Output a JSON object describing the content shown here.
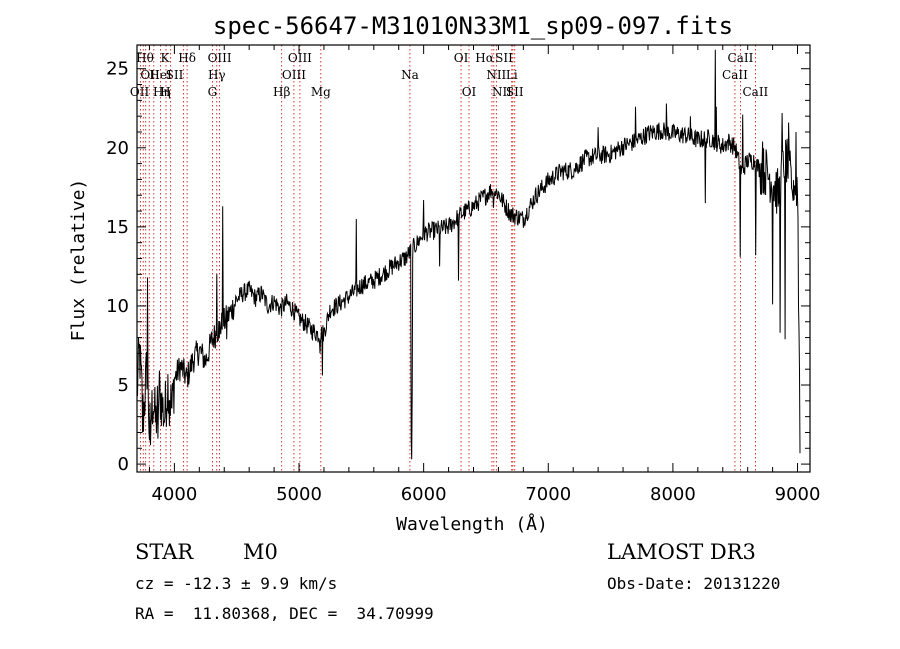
{
  "chart_data": {
    "type": "line",
    "title": "spec-56647-M31010N33M1_sp09-097.fits",
    "xlabel": "Wavelength (Å)",
    "ylabel": "Flux (relative)",
    "xlim": [
      3700,
      9100
    ],
    "ylim": [
      -0.5,
      26.5
    ],
    "xticks": [
      4000,
      5000,
      6000,
      7000,
      8000,
      9000
    ],
    "yticks": [
      0,
      5,
      10,
      15,
      20,
      25
    ],
    "anchors": [
      [
        3700,
        4.5
      ],
      [
        3720,
        7.2
      ],
      [
        3750,
        3.0
      ],
      [
        3780,
        6.2
      ],
      [
        3800,
        2.0
      ],
      [
        3830,
        4.2
      ],
      [
        3850,
        2.6
      ],
      [
        3880,
        4.6
      ],
      [
        3920,
        3.0
      ],
      [
        3950,
        5.2
      ],
      [
        3980,
        3.4
      ],
      [
        4000,
        5.4
      ],
      [
        4050,
        6.2
      ],
      [
        4100,
        5.4
      ],
      [
        4150,
        6.6
      ],
      [
        4200,
        7.2
      ],
      [
        4250,
        6.5
      ],
      [
        4300,
        7.8
      ],
      [
        4350,
        8.5
      ],
      [
        4400,
        9.0
      ],
      [
        4450,
        9.6
      ],
      [
        4500,
        10.4
      ],
      [
        4550,
        10.8
      ],
      [
        4600,
        11.0
      ],
      [
        4650,
        10.5
      ],
      [
        4700,
        10.8
      ],
      [
        4750,
        10.0
      ],
      [
        4800,
        10.3
      ],
      [
        4850,
        9.8
      ],
      [
        4900,
        10.2
      ],
      [
        4950,
        9.8
      ],
      [
        5000,
        9.2
      ],
      [
        5050,
        8.9
      ],
      [
        5100,
        8.5
      ],
      [
        5150,
        8.2
      ],
      [
        5200,
        8.3
      ],
      [
        5250,
        9.8
      ],
      [
        5300,
        10.0
      ],
      [
        5400,
        10.6
      ],
      [
        5500,
        11.3
      ],
      [
        5600,
        11.6
      ],
      [
        5700,
        12.2
      ],
      [
        5800,
        12.8
      ],
      [
        5850,
        13.0
      ],
      [
        5950,
        14.0
      ],
      [
        6000,
        14.6
      ],
      [
        6100,
        14.8
      ],
      [
        6200,
        15.0
      ],
      [
        6300,
        15.8
      ],
      [
        6400,
        16.3
      ],
      [
        6500,
        17.0
      ],
      [
        6550,
        17.4
      ],
      [
        6600,
        17.1
      ],
      [
        6650,
        16.4
      ],
      [
        6700,
        15.8
      ],
      [
        6800,
        15.5
      ],
      [
        6900,
        17.0
      ],
      [
        7000,
        17.9
      ],
      [
        7100,
        18.5
      ],
      [
        7200,
        18.6
      ],
      [
        7300,
        19.3
      ],
      [
        7400,
        19.5
      ],
      [
        7500,
        19.6
      ],
      [
        7600,
        20.1
      ],
      [
        7700,
        20.4
      ],
      [
        7800,
        20.9
      ],
      [
        7900,
        21.1
      ],
      [
        8000,
        20.9
      ],
      [
        8100,
        20.8
      ],
      [
        8200,
        20.5
      ],
      [
        8300,
        20.6
      ],
      [
        8400,
        20.1
      ],
      [
        8450,
        20.4
      ],
      [
        8500,
        20.0
      ],
      [
        8550,
        18.5
      ],
      [
        8600,
        19.2
      ],
      [
        8650,
        19.2
      ],
      [
        8700,
        18.6
      ],
      [
        8750,
        18.5
      ],
      [
        8800,
        17.8
      ],
      [
        8850,
        17.0
      ],
      [
        8900,
        19.5
      ],
      [
        8950,
        18.0
      ],
      [
        9000,
        17.5
      ],
      [
        9010,
        12.0
      ],
      [
        9020,
        1.0
      ]
    ],
    "spikes": [
      [
        3720,
        7.6
      ],
      [
        3745,
        2.0
      ],
      [
        3785,
        11.8
      ],
      [
        3810,
        1.2
      ],
      [
        3870,
        1.6
      ],
      [
        3960,
        2.4
      ],
      [
        4340,
        12.0
      ],
      [
        4360,
        8.0
      ],
      [
        4390,
        16.3
      ],
      [
        4420,
        7.9
      ],
      [
        5170,
        7.0
      ],
      [
        5190,
        5.6
      ],
      [
        5460,
        15.5
      ],
      [
        5900,
        1.5
      ],
      [
        5905,
        0.3
      ],
      [
        5910,
        4.5
      ],
      [
        6000,
        16.7
      ],
      [
        6130,
        12.5
      ],
      [
        6280,
        11.6
      ],
      [
        6560,
        16.2
      ],
      [
        6870,
        16.5
      ],
      [
        7400,
        21.3
      ],
      [
        7700,
        22.6
      ],
      [
        7950,
        22.8
      ],
      [
        8140,
        22.0
      ],
      [
        8260,
        16.5
      ],
      [
        8340,
        26.2
      ],
      [
        8345,
        20.0
      ],
      [
        8350,
        22.6
      ],
      [
        8540,
        13.1
      ],
      [
        8560,
        22.1
      ],
      [
        8665,
        13.2
      ],
      [
        8720,
        20.4
      ],
      [
        8800,
        10.1
      ],
      [
        8860,
        8.3
      ],
      [
        8875,
        22.2
      ],
      [
        8900,
        7.9
      ],
      [
        8930,
        21.6
      ],
      [
        8960,
        17.0
      ],
      [
        8990,
        21.0
      ],
      [
        9010,
        10.0
      ]
    ],
    "series": [
      {
        "values_note": "",
        "color": "#000000"
      }
    ],
    "lines": [
      {
        "wl": 3835,
        "label": "Hθ",
        "row": 0,
        "anchor": "end"
      },
      {
        "wl": 3889,
        "label": "K",
        "row": 0,
        "anchor": "start"
      },
      {
        "wl": 4102,
        "label": "Hδ",
        "row": 0,
        "anchor": "middle"
      },
      {
        "wl": 4363,
        "label": "OIII",
        "row": 0,
        "anchor": "middle"
      },
      {
        "wl": 5007,
        "label": "OIII",
        "row": 0,
        "anchor": "middle"
      },
      {
        "wl": 6300,
        "label": "OI",
        "row": 0,
        "anchor": "middle"
      },
      {
        "wl": 6563,
        "label": "Hα",
        "row": 0,
        "anchor": "end"
      },
      {
        "wl": 6716,
        "label": "SII",
        "row": 0,
        "anchor": "end"
      },
      {
        "wl": 8542,
        "label": "CaII",
        "row": 0,
        "anchor": "middle"
      },
      {
        "wl": 3727,
        "label": "OII",
        "row": 1,
        "anchor": "start"
      },
      {
        "wl": 3889,
        "label": "HeI",
        "row": 1,
        "anchor": "middle"
      },
      {
        "wl": 4072,
        "label": "SII",
        "row": 1,
        "anchor": "end"
      },
      {
        "wl": 4340,
        "label": "Hγ",
        "row": 1,
        "anchor": "middle"
      },
      {
        "wl": 4959,
        "label": "OIII",
        "row": 1,
        "anchor": "middle"
      },
      {
        "wl": 5890,
        "label": "Na",
        "row": 1,
        "anchor": "middle"
      },
      {
        "wl": 6583,
        "label": "NII",
        "row": 1,
        "anchor": "middle"
      },
      {
        "wl": 6707,
        "label": "Li",
        "row": 1,
        "anchor": "middle"
      },
      {
        "wl": 8498,
        "label": "CaII",
        "row": 1,
        "anchor": "middle"
      },
      {
        "wl": 3798,
        "label": "OII",
        "row": 2,
        "anchor": "end"
      },
      {
        "wl": 3970,
        "label": "H",
        "row": 2,
        "anchor": "end"
      },
      {
        "wl": 3970,
        "label": "Hη",
        "row": 2,
        "anchor": "end"
      },
      {
        "wl": 4305,
        "label": "G",
        "row": 2,
        "anchor": "middle"
      },
      {
        "wl": 4861,
        "label": "Hβ",
        "row": 2,
        "anchor": "middle"
      },
      {
        "wl": 5175,
        "label": "Mg",
        "row": 2,
        "anchor": "middle"
      },
      {
        "wl": 6364,
        "label": "OI",
        "row": 2,
        "anchor": "middle"
      },
      {
        "wl": 6548,
        "label": "NII",
        "row": 2,
        "anchor": "start"
      },
      {
        "wl": 6731,
        "label": "SII",
        "row": 2,
        "anchor": "middle"
      },
      {
        "wl": 8662,
        "label": "CaII",
        "row": 2,
        "anchor": "middle"
      }
    ],
    "line_wavelengths_extra": [
      3750,
      3770,
      3889,
      3933,
      3970,
      4072,
      4102,
      4305,
      4340,
      4363,
      4861,
      4959,
      5007,
      5175,
      5890,
      6300,
      6364,
      6548,
      6563,
      6583,
      6707,
      6716,
      6731,
      8498,
      8542,
      8662
    ]
  },
  "info": {
    "object_class": "STAR",
    "subclass": "M0",
    "survey": "LAMOST DR3",
    "cz": "cz = -12.3 ± 9.9 km/s",
    "obs_date": "Obs-Date: 20131220",
    "radec": "RA =  11.80368, DEC =  34.70999"
  }
}
